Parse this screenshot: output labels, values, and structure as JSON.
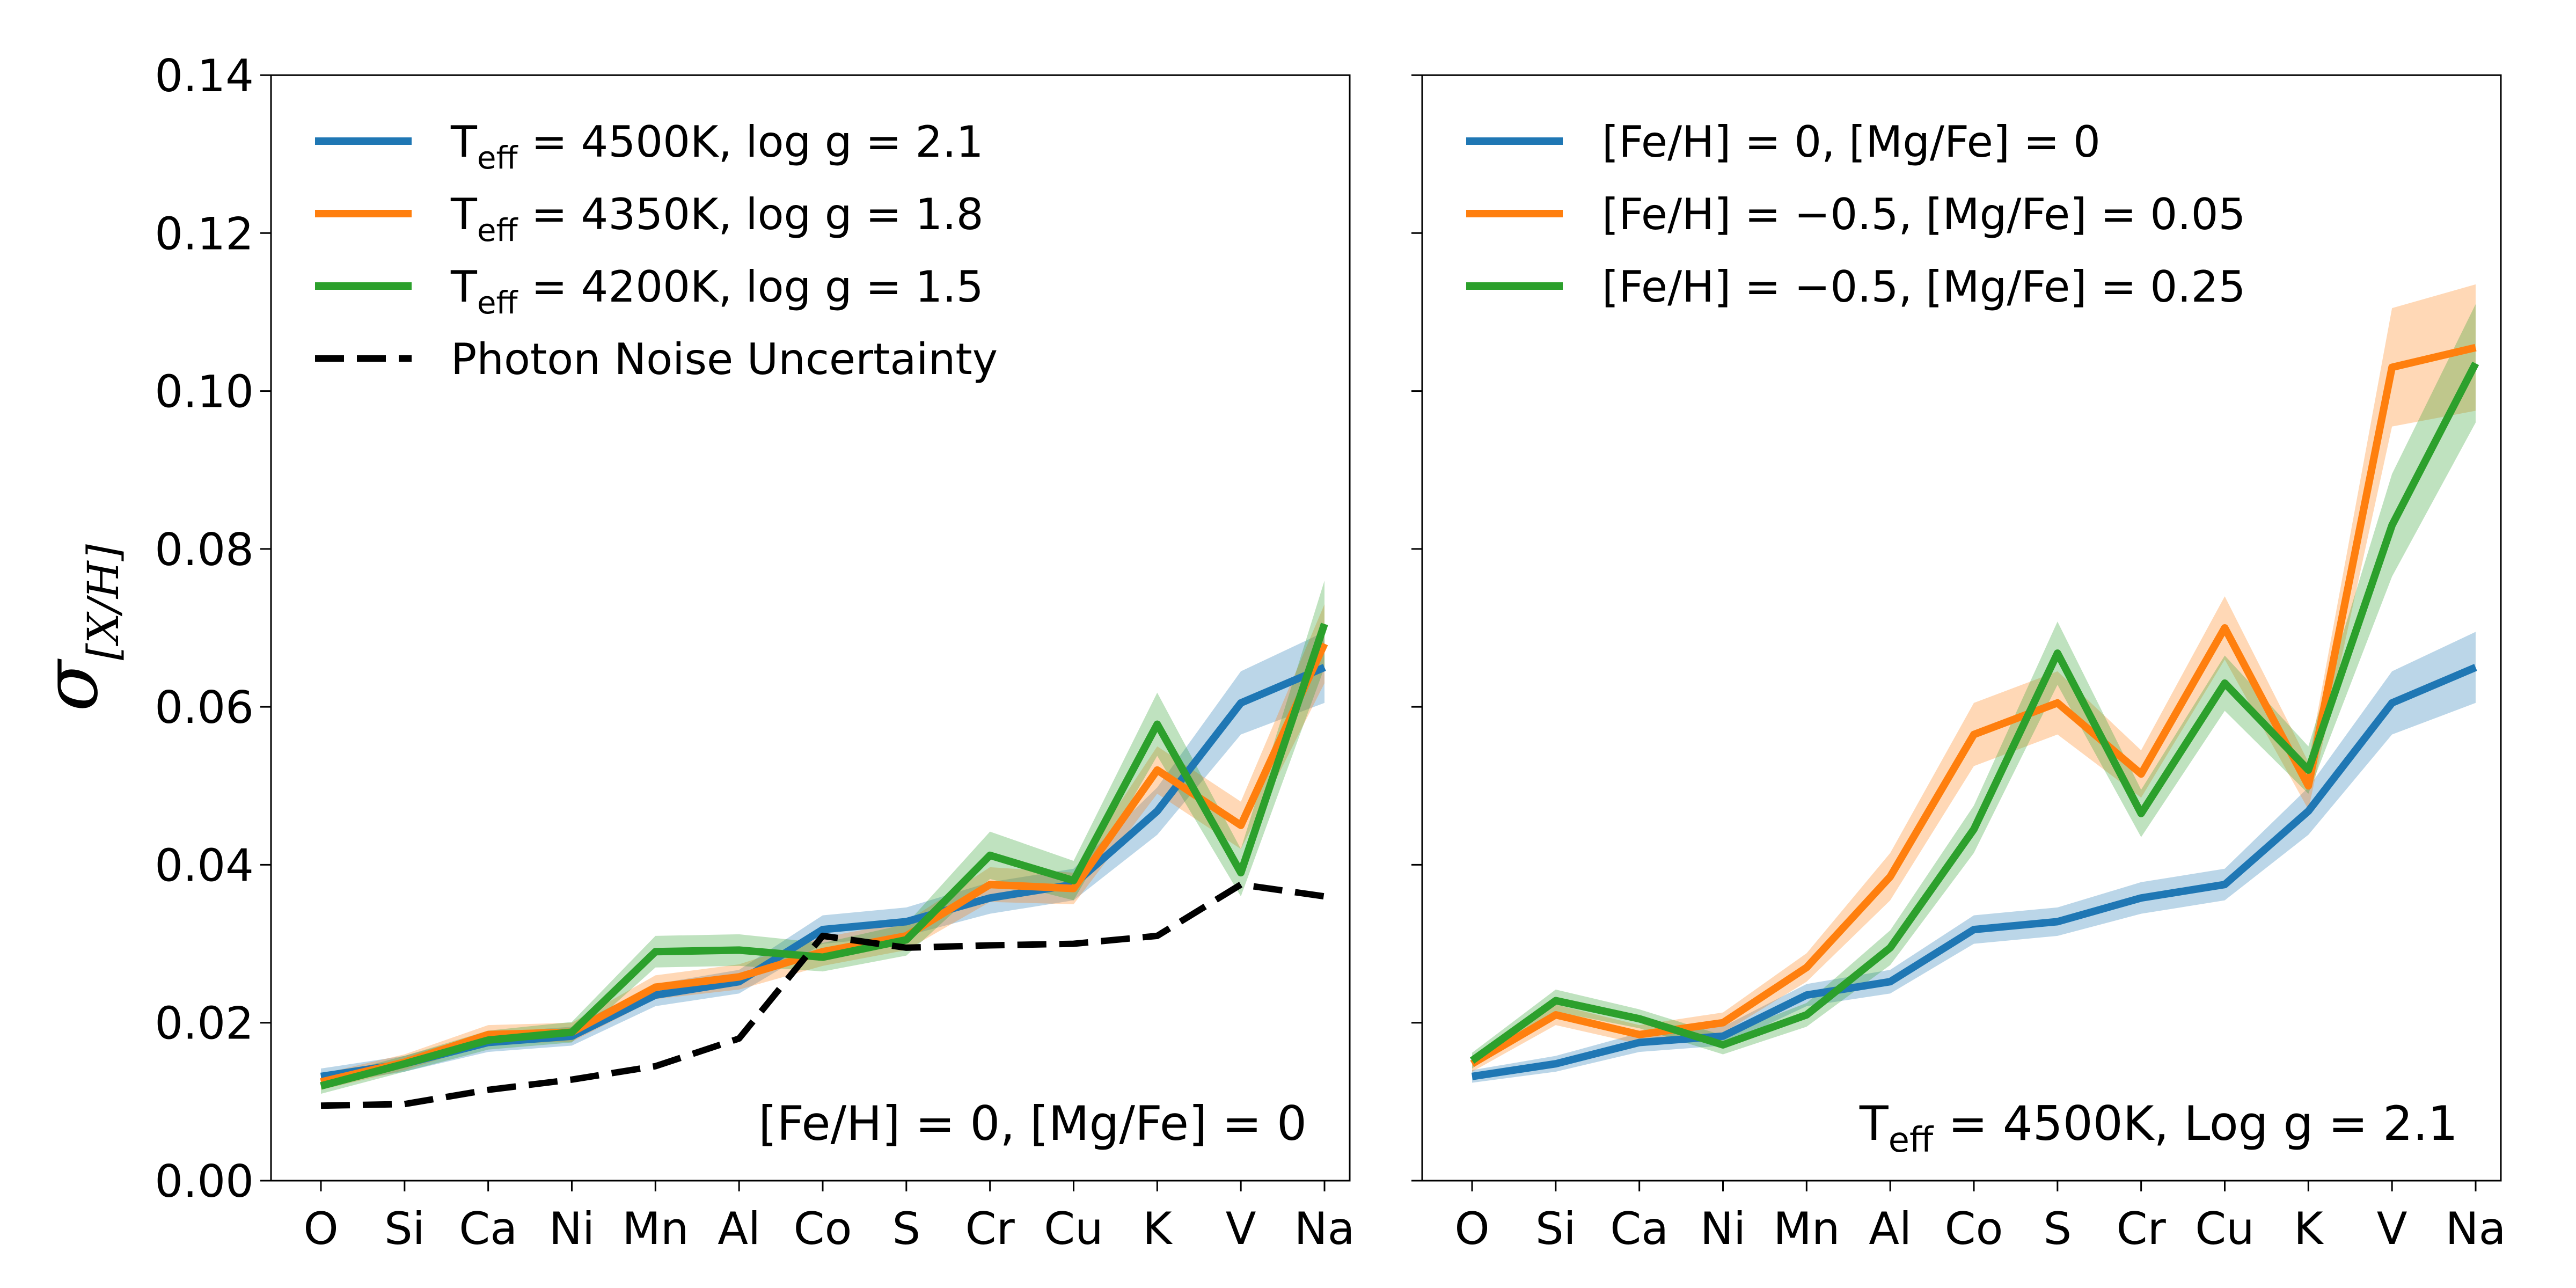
{
  "chart_data": [
    {
      "type": "line",
      "panel": "left",
      "categories": [
        "O",
        "Si",
        "Ca",
        "Ni",
        "Mn",
        "Al",
        "Co",
        "S",
        "Cr",
        "Cu",
        "K",
        "V",
        "Na"
      ],
      "ylim": [
        0.0,
        0.14
      ],
      "yticks": [
        "0.00",
        "0.02",
        "0.04",
        "0.06",
        "0.08",
        "0.10",
        "0.12",
        "0.14"
      ],
      "ylabel": "σ",
      "ylabel_sub": "[X/H]",
      "annotation": "[Fe/H] = 0, [Mg/Fe] = 0",
      "legend_position": "top-left",
      "series": [
        {
          "name": "Teff = 4500K, log g = 2.1",
          "legend": {
            "pre": "T",
            "sub": "eff",
            "post": " = 4500K, log g = 2.1"
          },
          "color": "#1f77b4",
          "style": "solid",
          "values": [
            0.0132,
            0.0148,
            0.0175,
            0.0183,
            0.0235,
            0.0252,
            0.0318,
            0.0328,
            0.0358,
            0.0375,
            0.0468,
            0.0605,
            0.065
          ],
          "band": [
            0.001,
            0.001,
            0.0012,
            0.0012,
            0.0014,
            0.0015,
            0.0018,
            0.0018,
            0.002,
            0.002,
            0.003,
            0.004,
            0.0045
          ]
        },
        {
          "name": "Teff = 4350K, log g = 1.8",
          "legend": {
            "pre": "T",
            "sub": "eff",
            "post": " = 4350K, log g = 1.8"
          },
          "color": "#ff7f0e",
          "style": "solid",
          "values": [
            0.0125,
            0.015,
            0.0185,
            0.0188,
            0.0245,
            0.0258,
            0.029,
            0.031,
            0.0375,
            0.037,
            0.052,
            0.045,
            0.068
          ],
          "band": [
            0.001,
            0.001,
            0.0012,
            0.0012,
            0.0015,
            0.0016,
            0.0018,
            0.0018,
            0.0022,
            0.002,
            0.003,
            0.003,
            0.005
          ]
        },
        {
          "name": "Teff = 4200K, log g = 1.5",
          "legend": {
            "pre": "T",
            "sub": "eff",
            "post": " = 4200K, log g = 1.5"
          },
          "color": "#2ca02c",
          "style": "solid",
          "values": [
            0.012,
            0.0148,
            0.0178,
            0.0188,
            0.029,
            0.0292,
            0.0283,
            0.0305,
            0.0412,
            0.038,
            0.0578,
            0.039,
            0.0705
          ],
          "band": [
            0.001,
            0.001,
            0.0012,
            0.0013,
            0.002,
            0.002,
            0.0018,
            0.002,
            0.003,
            0.0025,
            0.004,
            0.003,
            0.0055
          ]
        },
        {
          "name": "Photon Noise Uncertainty",
          "legend": {
            "pre": "Photon Noise Uncertainty",
            "sub": "",
            "post": ""
          },
          "color": "#000000",
          "style": "dashed",
          "values": [
            0.0095,
            0.0097,
            0.0115,
            0.0128,
            0.0145,
            0.018,
            0.031,
            0.0295,
            0.0298,
            0.03,
            0.031,
            0.0375,
            0.036
          ],
          "band": null
        }
      ]
    },
    {
      "type": "line",
      "panel": "right",
      "categories": [
        "O",
        "Si",
        "Ca",
        "Ni",
        "Mn",
        "Al",
        "Co",
        "S",
        "Cr",
        "Cu",
        "K",
        "V",
        "Na"
      ],
      "ylim": [
        0.0,
        0.14
      ],
      "annotation": {
        "pre": "T",
        "sub": "eff",
        "post": " = 4500K, Log g = 2.1"
      },
      "legend_position": "top-left",
      "series": [
        {
          "name": "[Fe/H] = 0, [Mg/Fe] = 0",
          "legend": {
            "pre": "[Fe/H] = 0, [Mg/Fe] = 0",
            "sub": "",
            "post": ""
          },
          "color": "#1f77b4",
          "style": "solid",
          "values": [
            0.0132,
            0.0148,
            0.0175,
            0.0183,
            0.0235,
            0.0252,
            0.0318,
            0.0328,
            0.0358,
            0.0375,
            0.0468,
            0.0605,
            0.065
          ],
          "band": [
            0.0008,
            0.001,
            0.0012,
            0.0012,
            0.0014,
            0.0015,
            0.0018,
            0.0018,
            0.002,
            0.002,
            0.003,
            0.004,
            0.0045
          ]
        },
        {
          "name": "[Fe/H] = -0.5, [Mg/Fe] = 0.05",
          "legend": {
            "pre": "[Fe/H] = −0.5, [Mg/Fe] = 0.05",
            "sub": "",
            "post": ""
          },
          "color": "#ff7f0e",
          "style": "solid",
          "values": [
            0.0148,
            0.021,
            0.0185,
            0.02,
            0.027,
            0.0385,
            0.0565,
            0.0605,
            0.0515,
            0.07,
            0.05,
            0.103,
            0.1055
          ],
          "band": [
            0.001,
            0.0013,
            0.0012,
            0.0013,
            0.0018,
            0.003,
            0.004,
            0.004,
            0.003,
            0.004,
            0.003,
            0.0075,
            0.008
          ]
        },
        {
          "name": "[Fe/H] = -0.5, [Mg/Fe] = 0.25",
          "legend": {
            "pre": "[Fe/H] = −0.5, [Mg/Fe] = 0.25",
            "sub": "",
            "post": ""
          },
          "color": "#2ca02c",
          "style": "solid",
          "values": [
            0.0152,
            0.0228,
            0.0205,
            0.0172,
            0.021,
            0.0295,
            0.0445,
            0.0668,
            0.0465,
            0.063,
            0.052,
            0.083,
            0.1035
          ],
          "band": [
            0.001,
            0.0014,
            0.0012,
            0.0012,
            0.0015,
            0.0022,
            0.003,
            0.004,
            0.003,
            0.0035,
            0.003,
            0.0065,
            0.0075
          ]
        }
      ]
    }
  ]
}
